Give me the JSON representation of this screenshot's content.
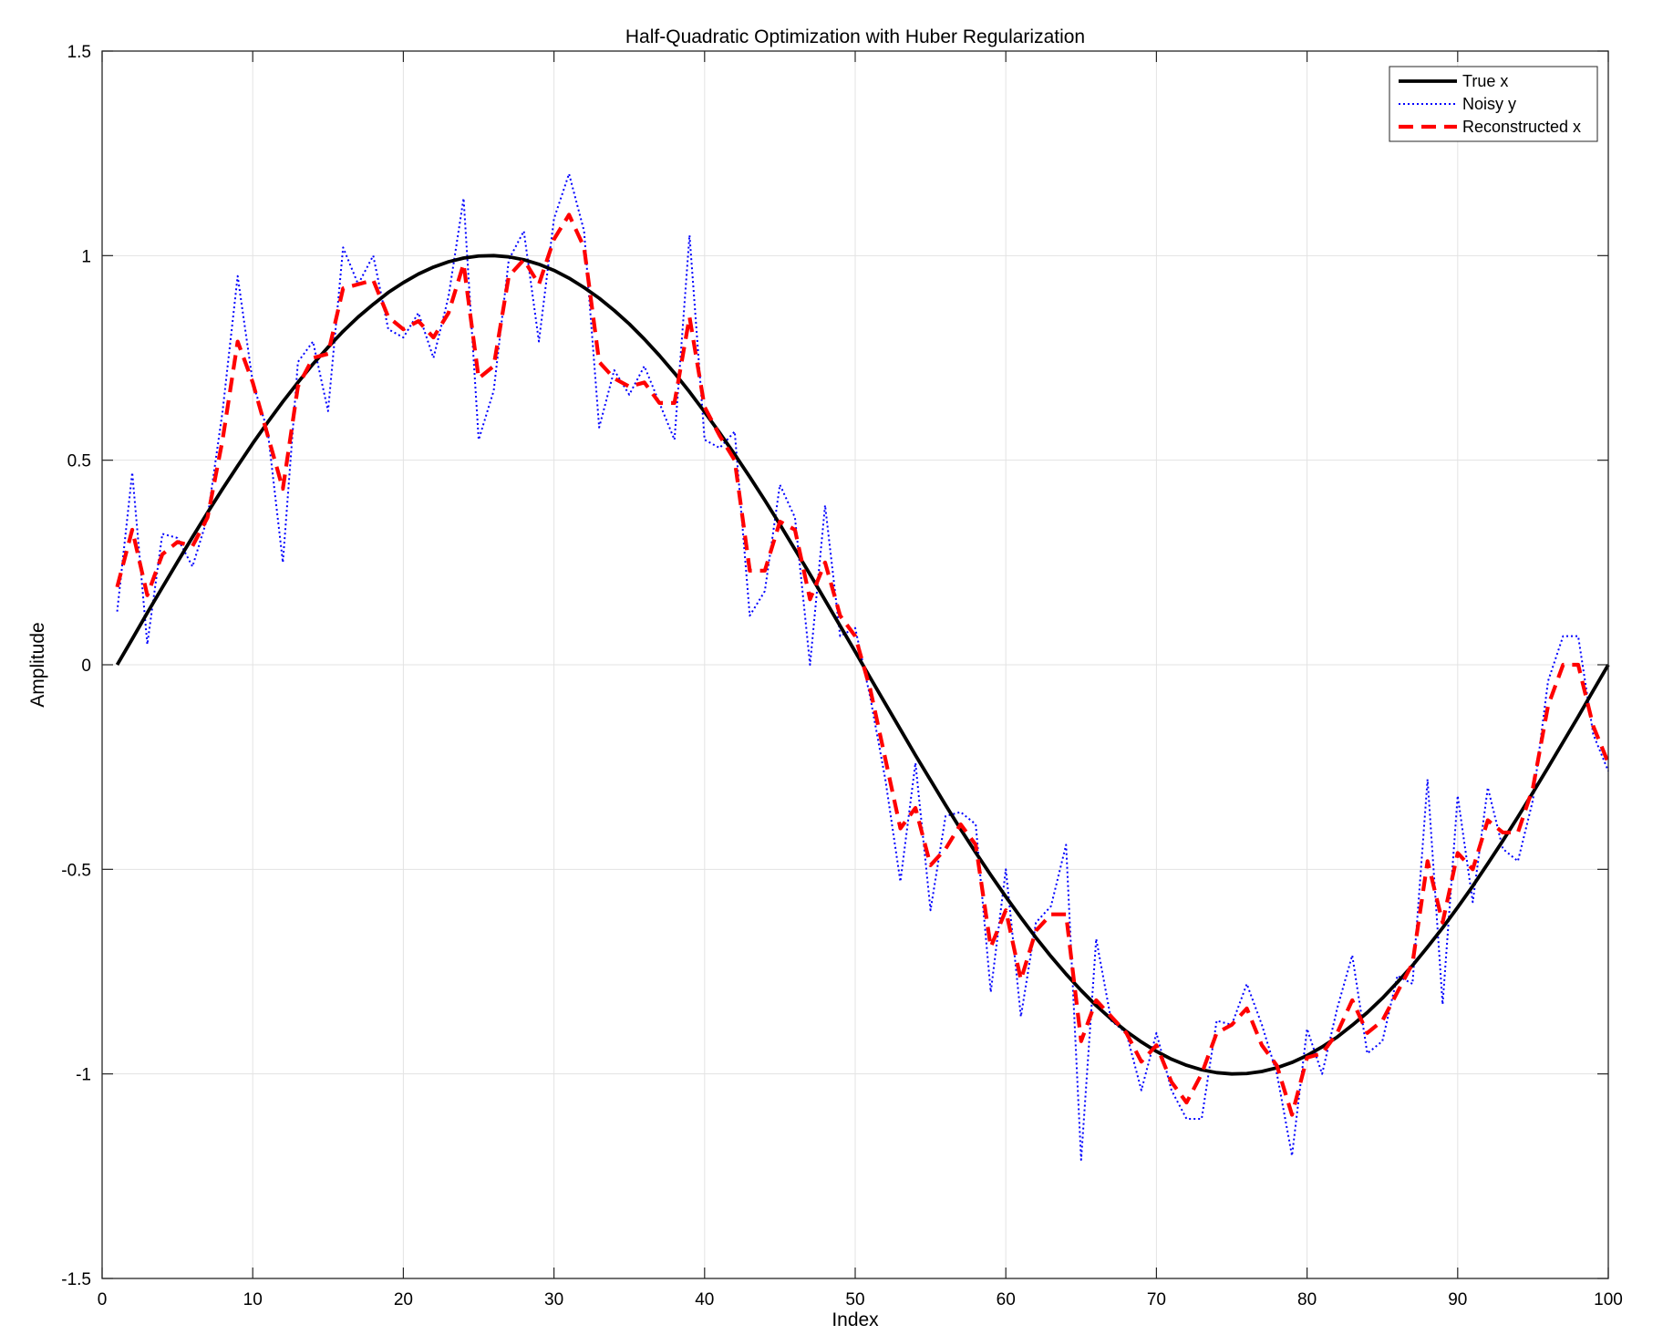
{
  "chart_data": {
    "type": "line",
    "title": "Half-Quadratic Optimization with Huber Regularization",
    "xlabel": "Index",
    "ylabel": "Amplitude",
    "xlim": [
      0,
      100
    ],
    "ylim": [
      -1.5,
      1.5
    ],
    "xticks": [
      0,
      10,
      20,
      30,
      40,
      50,
      60,
      70,
      80,
      90,
      100
    ],
    "yticks": [
      -1.5,
      -1,
      -0.5,
      0,
      0.5,
      1,
      1.5
    ],
    "xtick_labels": [
      "0",
      "10",
      "20",
      "30",
      "40",
      "50",
      "60",
      "70",
      "80",
      "90",
      "100"
    ],
    "ytick_labels": [
      "-1.5",
      "-1",
      "-0.5",
      "0",
      "0.5",
      "1",
      "1.5"
    ],
    "grid": true,
    "legend_position": "top-right",
    "series": [
      {
        "name": "True x",
        "color": "#000000",
        "style": "solid",
        "x_range": [
          1,
          100
        ],
        "values": [
          0.0,
          0.063,
          0.127,
          0.189,
          0.251,
          0.312,
          0.372,
          0.43,
          0.486,
          0.541,
          0.593,
          0.643,
          0.69,
          0.735,
          0.776,
          0.815,
          0.85,
          0.881,
          0.91,
          0.934,
          0.955,
          0.972,
          0.985,
          0.994,
          0.999,
          1.0,
          0.997,
          0.99,
          0.979,
          0.964,
          0.945,
          0.922,
          0.896,
          0.866,
          0.833,
          0.796,
          0.756,
          0.713,
          0.667,
          0.618,
          0.567,
          0.514,
          0.459,
          0.402,
          0.343,
          0.282,
          0.221,
          0.158,
          0.095,
          0.032,
          -0.032,
          -0.095,
          -0.158,
          -0.221,
          -0.282,
          -0.343,
          -0.402,
          -0.459,
          -0.514,
          -0.567,
          -0.618,
          -0.667,
          -0.713,
          -0.756,
          -0.796,
          -0.833,
          -0.866,
          -0.896,
          -0.922,
          -0.945,
          -0.964,
          -0.979,
          -0.99,
          -0.997,
          -1.0,
          -0.999,
          -0.994,
          -0.985,
          -0.972,
          -0.955,
          -0.934,
          -0.91,
          -0.881,
          -0.85,
          -0.815,
          -0.776,
          -0.735,
          -0.69,
          -0.643,
          -0.593,
          -0.541,
          -0.486,
          -0.43,
          -0.372,
          -0.312,
          -0.251,
          -0.189,
          -0.127,
          -0.063,
          0.0
        ]
      },
      {
        "name": "Noisy y",
        "color": "#0000ff",
        "style": "dotted",
        "x_range": [
          1,
          100
        ],
        "values": [
          0.13,
          0.47,
          0.05,
          0.32,
          0.31,
          0.24,
          0.36,
          0.62,
          0.95,
          0.69,
          0.57,
          0.25,
          0.74,
          0.79,
          0.62,
          1.02,
          0.93,
          1.0,
          0.82,
          0.8,
          0.86,
          0.75,
          0.9,
          1.14,
          0.55,
          0.67,
          0.99,
          1.06,
          0.79,
          1.09,
          1.2,
          1.06,
          0.58,
          0.72,
          0.66,
          0.73,
          0.64,
          0.55,
          1.05,
          0.55,
          0.53,
          0.57,
          0.12,
          0.18,
          0.44,
          0.36,
          0.0,
          0.39,
          0.07,
          0.09,
          -0.08,
          -0.28,
          -0.53,
          -0.24,
          -0.6,
          -0.37,
          -0.36,
          -0.39,
          -0.8,
          -0.5,
          -0.86,
          -0.63,
          -0.59,
          -0.44,
          -1.21,
          -0.67,
          -0.87,
          -0.9,
          -1.04,
          -0.9,
          -1.04,
          -1.11,
          -1.11,
          -0.87,
          -0.88,
          -0.78,
          -0.88,
          -1.0,
          -1.2,
          -0.89,
          -1.0,
          -0.84,
          -0.71,
          -0.95,
          -0.92,
          -0.76,
          -0.78,
          -0.28,
          -0.83,
          -0.32,
          -0.58,
          -0.3,
          -0.45,
          -0.48,
          -0.33,
          -0.04,
          0.07,
          0.07,
          -0.17,
          -0.26
        ]
      },
      {
        "name": "Reconstructed x",
        "color": "#ff0000",
        "style": "dashed",
        "x_range": [
          1,
          100
        ],
        "values": [
          0.19,
          0.33,
          0.17,
          0.27,
          0.3,
          0.29,
          0.36,
          0.55,
          0.79,
          0.69,
          0.56,
          0.43,
          0.68,
          0.75,
          0.76,
          0.92,
          0.93,
          0.94,
          0.85,
          0.82,
          0.84,
          0.8,
          0.86,
          0.98,
          0.7,
          0.73,
          0.95,
          0.99,
          0.93,
          1.04,
          1.1,
          1.02,
          0.74,
          0.7,
          0.68,
          0.69,
          0.64,
          0.64,
          0.85,
          0.63,
          0.56,
          0.5,
          0.23,
          0.23,
          0.35,
          0.33,
          0.16,
          0.25,
          0.12,
          0.07,
          -0.06,
          -0.23,
          -0.4,
          -0.35,
          -0.49,
          -0.45,
          -0.39,
          -0.44,
          -0.69,
          -0.6,
          -0.77,
          -0.65,
          -0.61,
          -0.61,
          -0.92,
          -0.82,
          -0.86,
          -0.9,
          -0.97,
          -0.93,
          -1.02,
          -1.07,
          -1.0,
          -0.9,
          -0.88,
          -0.84,
          -0.93,
          -0.98,
          -1.1,
          -0.96,
          -0.95,
          -0.9,
          -0.82,
          -0.9,
          -0.87,
          -0.8,
          -0.73,
          -0.48,
          -0.63,
          -0.46,
          -0.5,
          -0.38,
          -0.41,
          -0.41,
          -0.3,
          -0.1,
          0.0,
          0.0,
          -0.15,
          -0.24
        ]
      }
    ]
  }
}
